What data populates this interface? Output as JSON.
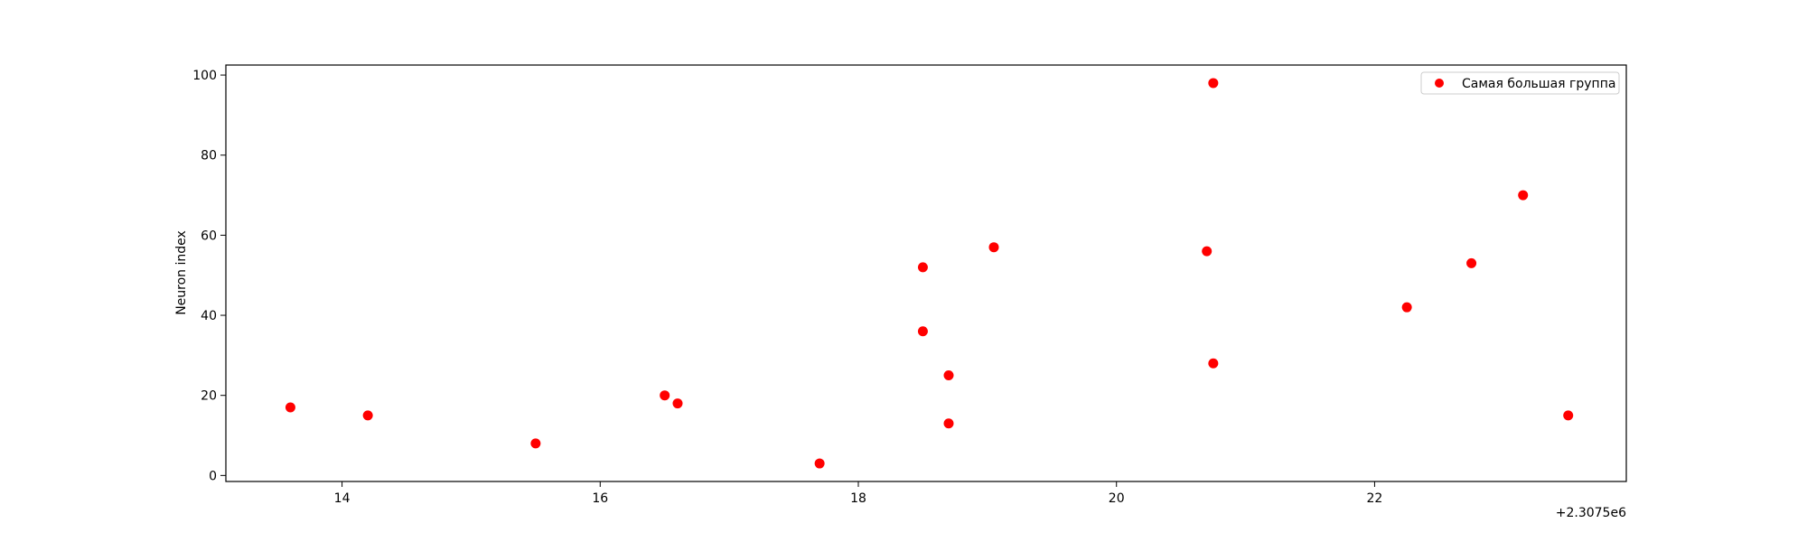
{
  "chart_data": {
    "type": "scatter",
    "title": "",
    "xlabel": "",
    "ylabel": "Neuron index",
    "x_offset_label": "+2.3075e6",
    "xlim": [
      13.1,
      23.95
    ],
    "ylim": [
      -1.5,
      102.5
    ],
    "x_ticks": [
      14,
      16,
      18,
      20,
      22
    ],
    "y_ticks": [
      0,
      20,
      40,
      60,
      80,
      100
    ],
    "grid": false,
    "legend_position": "top-right",
    "series": [
      {
        "name": "Самая большая группа",
        "color": "#ff0000",
        "points": [
          {
            "x": 13.6,
            "y": 17
          },
          {
            "x": 14.2,
            "y": 15
          },
          {
            "x": 15.5,
            "y": 8
          },
          {
            "x": 16.5,
            "y": 20
          },
          {
            "x": 16.6,
            "y": 18
          },
          {
            "x": 17.7,
            "y": 3
          },
          {
            "x": 18.5,
            "y": 52
          },
          {
            "x": 18.5,
            "y": 36
          },
          {
            "x": 18.7,
            "y": 25
          },
          {
            "x": 18.7,
            "y": 13
          },
          {
            "x": 19.05,
            "y": 57
          },
          {
            "x": 20.7,
            "y": 56
          },
          {
            "x": 20.75,
            "y": 98
          },
          {
            "x": 20.75,
            "y": 28
          },
          {
            "x": 22.25,
            "y": 42
          },
          {
            "x": 22.75,
            "y": 53
          },
          {
            "x": 23.15,
            "y": 70
          },
          {
            "x": 23.5,
            "y": 15
          }
        ]
      }
    ]
  }
}
